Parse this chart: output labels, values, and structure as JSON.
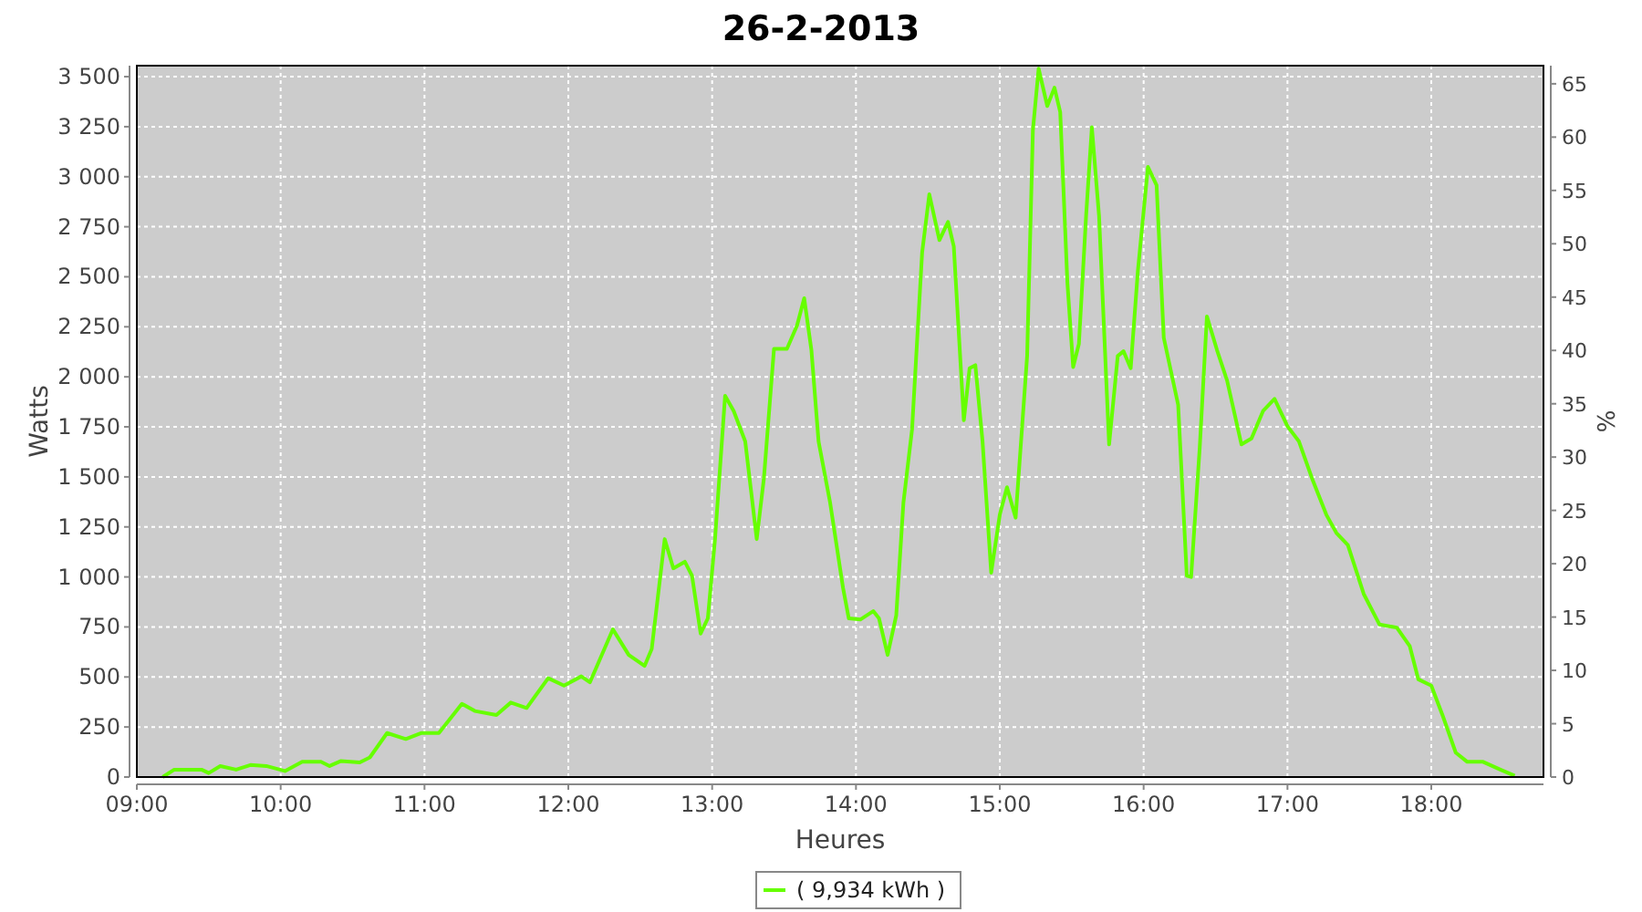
{
  "chart_data": {
    "type": "line",
    "title": "26-2-2013",
    "xlabel": "Heures",
    "ylabel": "Watts",
    "y2label": "%",
    "xlim": [
      9,
      18.78
    ],
    "ylim": [
      0,
      3555
    ],
    "y2lim": [
      0,
      66.7
    ],
    "xticks": [
      {
        "value": 9,
        "label": "09:00"
      },
      {
        "value": 10,
        "label": "10:00"
      },
      {
        "value": 11,
        "label": "11:00"
      },
      {
        "value": 12,
        "label": "12:00"
      },
      {
        "value": 13,
        "label": "13:00"
      },
      {
        "value": 14,
        "label": "14:00"
      },
      {
        "value": 15,
        "label": "15:00"
      },
      {
        "value": 16,
        "label": "16:00"
      },
      {
        "value": 17,
        "label": "17:00"
      },
      {
        "value": 18,
        "label": "18:00"
      }
    ],
    "yticks": [
      0,
      250,
      500,
      750,
      {
        "value": 1000,
        "label": "1 000"
      },
      {
        "value": 1250,
        "label": "1 250"
      },
      {
        "value": 1500,
        "label": "1 500"
      },
      {
        "value": 1750,
        "label": "1 750"
      },
      {
        "value": 2000,
        "label": "2 000"
      },
      {
        "value": 2250,
        "label": "2 250"
      },
      {
        "value": 2500,
        "label": "2 500"
      },
      {
        "value": 2750,
        "label": "2 750"
      },
      {
        "value": 3000,
        "label": "3 000"
      },
      {
        "value": 3250,
        "label": "3 250"
      },
      {
        "value": 3500,
        "label": "3 500"
      }
    ],
    "y2ticks": [
      0,
      5,
      10,
      15,
      20,
      25,
      30,
      35,
      40,
      45,
      50,
      55,
      60,
      65
    ],
    "grid": true,
    "legend": "bottom",
    "line_style": "solid",
    "series": [
      {
        "name": "( 9,934 kWh )",
        "color": "#66ff00",
        "x": [
          9.18,
          9.26,
          9.45,
          9.5,
          9.58,
          9.69,
          9.79,
          9.9,
          10.03,
          10.15,
          10.28,
          10.34,
          10.42,
          10.55,
          10.62,
          10.74,
          10.87,
          10.98,
          11.1,
          11.26,
          11.35,
          11.5,
          11.6,
          11.71,
          11.86,
          11.97,
          12.09,
          12.15,
          12.31,
          12.42,
          12.53,
          12.58,
          12.67,
          12.73,
          12.81,
          12.86,
          12.92,
          12.97,
          13.02,
          13.09,
          13.15,
          13.23,
          13.27,
          13.31,
          13.36,
          13.43,
          13.52,
          13.59,
          13.64,
          13.69,
          13.74,
          13.82,
          13.91,
          13.95,
          14.03,
          14.12,
          14.16,
          14.22,
          14.28,
          14.33,
          14.39,
          14.46,
          14.51,
          14.58,
          14.64,
          14.68,
          14.75,
          14.79,
          14.83,
          14.88,
          14.94,
          15.0,
          15.05,
          15.11,
          15.19,
          15.23,
          15.27,
          15.33,
          15.38,
          15.42,
          15.47,
          15.51,
          15.55,
          15.6,
          15.64,
          15.69,
          15.76,
          15.82,
          15.86,
          15.91,
          15.96,
          16.03,
          16.09,
          16.14,
          16.24,
          16.3,
          16.33,
          16.39,
          16.44,
          16.51,
          16.58,
          16.68,
          16.75,
          16.83,
          16.91,
          17.0,
          17.08,
          17.17,
          17.27,
          17.34,
          17.42,
          17.53,
          17.64,
          17.76,
          17.85,
          17.91,
          18.0,
          18.08,
          18.17,
          18.25,
          18.36,
          18.48,
          18.58
        ],
        "values": [
          0,
          37,
          37,
          20,
          55,
          37,
          60,
          55,
          30,
          76,
          76,
          55,
          80,
          73,
          98,
          220,
          190,
          220,
          220,
          366,
          330,
          310,
          372,
          345,
          494,
          457,
          503,
          473,
          738,
          610,
          555,
          640,
          1189,
          1043,
          1076,
          1006,
          717,
          793,
          1189,
          1905,
          1829,
          1677,
          1433,
          1189,
          1494,
          2140,
          2140,
          2256,
          2393,
          2134,
          1677,
          1372,
          945,
          793,
          787,
          829,
          793,
          610,
          808,
          1372,
          1738,
          2622,
          2912,
          2683,
          2774,
          2652,
          1783,
          2043,
          2058,
          1677,
          1021,
          1311,
          1448,
          1296,
          2104,
          3232,
          3540,
          3353,
          3445,
          3323,
          2470,
          2049,
          2165,
          2805,
          3247,
          2805,
          1662,
          2104,
          2128,
          2043,
          2530,
          3049,
          2957,
          2195,
          1860,
          1006,
          1000,
          1646,
          2302,
          2134,
          1982,
          1662,
          1692,
          1829,
          1890,
          1753,
          1677,
          1494,
          1311,
          1220,
          1159,
          915,
          762,
          747,
          655,
          488,
          457,
          305,
          122,
          76,
          76,
          37,
          6
        ]
      }
    ]
  }
}
